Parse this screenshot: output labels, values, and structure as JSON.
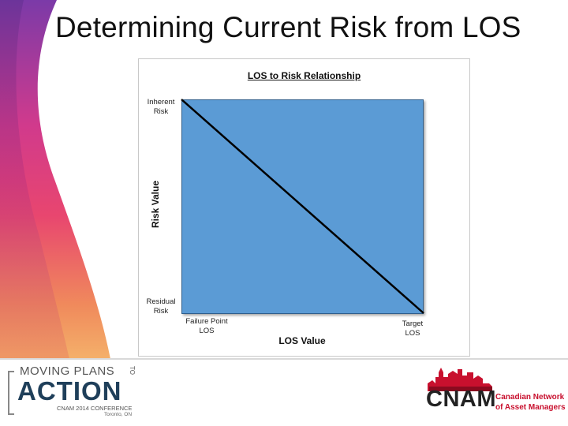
{
  "slide": {
    "title": "Determining Current Risk from LOS"
  },
  "chart": {
    "title": "LOS to Risk Relationship",
    "y_axis_title": "Risk Value",
    "x_axis_title": "LOS Value",
    "y_top_label": "Inherent\nRisk",
    "y_bottom_label": "Residual\nRisk",
    "x_left_label": "Failure Point\nLOS",
    "x_right_label": "Target\nLOS"
  },
  "colors": {
    "plot_fill": "#5b9bd5",
    "line": "#000000",
    "brand_red": "#c8102e"
  },
  "footer": {
    "left_logo": {
      "line1": "MOVING PLANS",
      "to": "TO",
      "line2": "ACTION",
      "line3": "CNAM 2014 CONFERENCE",
      "line4": "Toronto, ON"
    },
    "right_logo": {
      "wordmark": "CNAM",
      "sub1": "Canadian Network",
      "sub2": "of Asset Managers",
      "icon": "city-skyline-icon"
    }
  }
}
